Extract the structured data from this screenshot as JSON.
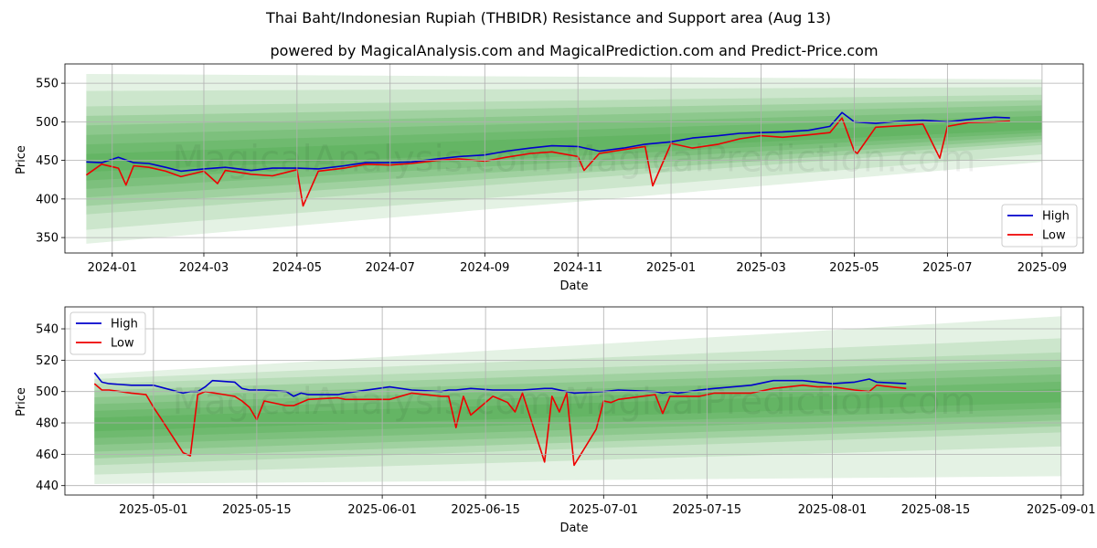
{
  "title": "Thai Baht/Indonesian Rupiah (THBIDR) Resistance and Support area (Aug 13)",
  "subtitle": "powered by MagicalAnalysis.com and MagicalPrediction.com and Predict-Price.com",
  "watermark": "MagicalAnalysis.com    MagicalPrediction.com",
  "colors": {
    "high": "#0000cc",
    "low": "#ee0000",
    "band": "#2e9b2e"
  },
  "chart_data": [
    {
      "type": "line",
      "xlabel": "Date",
      "ylabel": "Price",
      "xlim": [
        "2023-12-01",
        "2025-09-28"
      ],
      "ylim": [
        330,
        575
      ],
      "grid": true,
      "legend": "lower-right",
      "xticks": [
        "2024-01",
        "2024-03",
        "2024-05",
        "2024-07",
        "2024-09",
        "2024-11",
        "2025-01",
        "2025-03",
        "2025-05",
        "2025-07",
        "2025-09"
      ],
      "yticks": [
        350,
        400,
        450,
        500,
        550
      ],
      "band": {
        "x_start": "2023-12-15",
        "x_end": "2025-09-01",
        "upper_start": [
          520,
          540,
          562
        ],
        "lower_start": [
          380,
          360,
          342
        ],
        "upper_end": [
          535,
          545,
          555
        ],
        "lower_end": [
          470,
          458,
          448
        ],
        "center_start": 446,
        "center_end": 494
      },
      "series": [
        {
          "name": "High",
          "color": "#0000cc",
          "x": [
            "2023-12-15",
            "2023-12-25",
            "2024-01-05",
            "2024-01-15",
            "2024-01-25",
            "2024-02-05",
            "2024-02-15",
            "2024-03-01",
            "2024-03-15",
            "2024-04-01",
            "2024-04-15",
            "2024-05-01",
            "2024-05-15",
            "2024-06-01",
            "2024-06-15",
            "2024-07-01",
            "2024-07-15",
            "2024-08-01",
            "2024-08-15",
            "2024-09-01",
            "2024-09-15",
            "2024-10-01",
            "2024-10-15",
            "2024-11-01",
            "2024-11-15",
            "2024-12-01",
            "2024-12-15",
            "2025-01-01",
            "2025-01-15",
            "2025-02-01",
            "2025-02-15",
            "2025-03-01",
            "2025-03-15",
            "2025-04-01",
            "2025-04-15",
            "2025-04-23",
            "2025-05-01",
            "2025-05-15",
            "2025-06-01",
            "2025-06-15",
            "2025-07-01",
            "2025-07-15",
            "2025-08-01",
            "2025-08-11"
          ],
          "y": [
            448,
            447,
            454,
            447,
            446,
            441,
            436,
            439,
            441,
            437,
            440,
            440,
            439,
            443,
            447,
            447,
            448,
            452,
            455,
            457,
            462,
            466,
            469,
            468,
            462,
            466,
            471,
            474,
            479,
            482,
            485,
            486,
            487,
            489,
            494,
            512,
            500,
            498,
            501,
            502,
            500,
            503,
            506,
            505
          ]
        },
        {
          "name": "Low",
          "color": "#ee0000",
          "x": [
            "2023-12-15",
            "2023-12-25",
            "2024-01-05",
            "2024-01-10",
            "2024-01-15",
            "2024-01-25",
            "2024-02-05",
            "2024-02-15",
            "2024-03-01",
            "2024-03-10",
            "2024-03-15",
            "2024-04-01",
            "2024-04-15",
            "2024-05-01",
            "2024-05-05",
            "2024-05-15",
            "2024-06-01",
            "2024-06-15",
            "2024-07-01",
            "2024-07-15",
            "2024-08-01",
            "2024-08-15",
            "2024-09-01",
            "2024-09-15",
            "2024-10-01",
            "2024-10-15",
            "2024-11-01",
            "2024-11-05",
            "2024-11-15",
            "2024-12-01",
            "2024-12-15",
            "2024-12-20",
            "2025-01-01",
            "2025-01-15",
            "2025-02-01",
            "2025-02-15",
            "2025-03-01",
            "2025-03-15",
            "2025-04-01",
            "2025-04-15",
            "2025-04-23",
            "2025-05-01",
            "2025-05-03",
            "2025-05-15",
            "2025-06-01",
            "2025-06-15",
            "2025-06-26",
            "2025-07-01",
            "2025-07-15",
            "2025-08-01",
            "2025-08-11"
          ],
          "y": [
            431,
            445,
            440,
            418,
            443,
            441,
            436,
            429,
            436,
            420,
            437,
            432,
            430,
            438,
            391,
            436,
            440,
            445,
            444,
            446,
            450,
            452,
            449,
            454,
            459,
            461,
            455,
            437,
            459,
            464,
            468,
            417,
            472,
            466,
            471,
            478,
            482,
            480,
            483,
            486,
            505,
            462,
            459,
            493,
            495,
            497,
            453,
            494,
            499,
            500,
            501
          ]
        }
      ]
    },
    {
      "type": "line",
      "xlabel": "Date",
      "ylabel": "Price",
      "xlim": [
        "2025-04-19",
        "2025-09-04"
      ],
      "ylim": [
        434,
        554
      ],
      "grid": true,
      "legend": "upper-left",
      "xticks": [
        "2025-05-01",
        "2025-05-15",
        "2025-06-01",
        "2025-06-15",
        "2025-07-01",
        "2025-07-15",
        "2025-08-01",
        "2025-08-15",
        "2025-09-01"
      ],
      "yticks": [
        440,
        460,
        480,
        500,
        520,
        540
      ],
      "band": {
        "x_start": "2025-04-23",
        "x_end": "2025-09-01",
        "upper_start": [
          505,
          508,
          511
        ],
        "lower_start": [
          453,
          447,
          441
        ],
        "upper_end": [
          525,
          534,
          548
        ],
        "lower_end": [
          474,
          465,
          446
        ],
        "center_start": 479,
        "center_end": 497
      },
      "series": [
        {
          "name": "High",
          "color": "#0000cc",
          "x": [
            "2025-04-23",
            "2025-04-24",
            "2025-04-25",
            "2025-04-28",
            "2025-05-01",
            "2025-05-05",
            "2025-05-06",
            "2025-05-07",
            "2025-05-08",
            "2025-05-09",
            "2025-05-12",
            "2025-05-13",
            "2025-05-14",
            "2025-05-15",
            "2025-05-16",
            "2025-05-19",
            "2025-05-20",
            "2025-05-21",
            "2025-05-22",
            "2025-05-26",
            "2025-05-27",
            "2025-06-02",
            "2025-06-05",
            "2025-06-09",
            "2025-06-10",
            "2025-06-11",
            "2025-06-13",
            "2025-06-16",
            "2025-06-20",
            "2025-06-23",
            "2025-06-24",
            "2025-06-26",
            "2025-06-27",
            "2025-07-01",
            "2025-07-03",
            "2025-07-08",
            "2025-07-09",
            "2025-07-10",
            "2025-07-11",
            "2025-07-14",
            "2025-07-16",
            "2025-07-21",
            "2025-07-24",
            "2025-07-28",
            "2025-07-30",
            "2025-08-01",
            "2025-08-04",
            "2025-08-06",
            "2025-08-07",
            "2025-08-11"
          ],
          "y": [
            512,
            506,
            505,
            504,
            504,
            499,
            500,
            500,
            503,
            507,
            506,
            502,
            501,
            501,
            501,
            500,
            497,
            499,
            498,
            498,
            499,
            503,
            501,
            500,
            501,
            501,
            502,
            501,
            501,
            502,
            502,
            500,
            499,
            500,
            501,
            500,
            499,
            500,
            499,
            501,
            502,
            504,
            507,
            507,
            506,
            505,
            506,
            508,
            506,
            505
          ]
        },
        {
          "name": "Low",
          "color": "#ee0000",
          "x": [
            "2025-04-23",
            "2025-04-24",
            "2025-04-25",
            "2025-04-28",
            "2025-04-30",
            "2025-05-01",
            "2025-05-02",
            "2025-05-05",
            "2025-05-06",
            "2025-05-07",
            "2025-05-08",
            "2025-05-12",
            "2025-05-13",
            "2025-05-14",
            "2025-05-15",
            "2025-05-16",
            "2025-05-19",
            "2025-05-20",
            "2025-05-21",
            "2025-05-22",
            "2025-05-26",
            "2025-05-27",
            "2025-06-02",
            "2025-06-05",
            "2025-06-09",
            "2025-06-10",
            "2025-06-11",
            "2025-06-12",
            "2025-06-13",
            "2025-06-16",
            "2025-06-17",
            "2025-06-18",
            "2025-06-19",
            "2025-06-20",
            "2025-06-23",
            "2025-06-24",
            "2025-06-25",
            "2025-06-26",
            "2025-06-27",
            "2025-06-30",
            "2025-07-01",
            "2025-07-02",
            "2025-07-03",
            "2025-07-08",
            "2025-07-09",
            "2025-07-10",
            "2025-07-14",
            "2025-07-16",
            "2025-07-21",
            "2025-07-24",
            "2025-07-28",
            "2025-07-30",
            "2025-08-01",
            "2025-08-04",
            "2025-08-06",
            "2025-08-07",
            "2025-08-11"
          ],
          "y": [
            505,
            501,
            501,
            499,
            498,
            490,
            483,
            461,
            459,
            498,
            500,
            497,
            494,
            490,
            482,
            494,
            491,
            491,
            493,
            495,
            496,
            495,
            495,
            499,
            497,
            497,
            477,
            497,
            485,
            497,
            495,
            493,
            487,
            499,
            455,
            497,
            487,
            499,
            453,
            476,
            494,
            493,
            495,
            498,
            486,
            497,
            497,
            499,
            499,
            502,
            504,
            503,
            503,
            501,
            500,
            504,
            502
          ]
        }
      ]
    }
  ],
  "legend": {
    "high": "High",
    "low": "Low"
  },
  "axes": [
    {
      "ylabel": "Price",
      "xlabel": "Date"
    },
    {
      "ylabel": "Price",
      "xlabel": "Date"
    }
  ]
}
